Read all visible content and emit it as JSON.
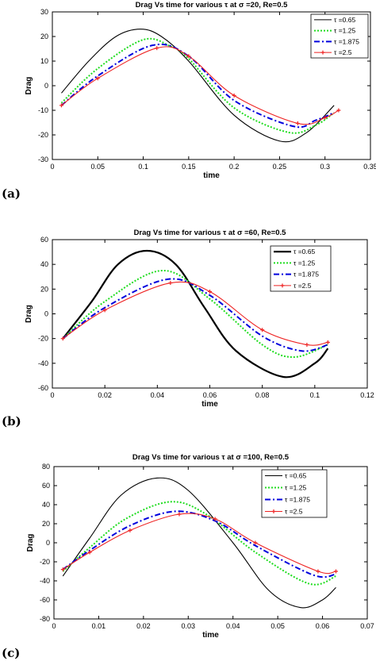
{
  "chart_data": [
    {
      "type": "line",
      "panel_label": "(a)",
      "title": "Drag Vs time for various  τ at  σ =20, Re=0.5",
      "xlabel": "time",
      "ylabel": "Drag",
      "xlim": [
        0,
        0.35
      ],
      "ylim": [
        -30,
        30
      ],
      "x_ticks": [
        "0",
        "0.05",
        "0.1",
        "0.15",
        "0.2",
        "0.25",
        "0.3",
        "0.35"
      ],
      "y_ticks": [
        "-30",
        "-20",
        "-10",
        "0",
        "10",
        "20",
        "30"
      ],
      "grid": false,
      "legend_position": "top-right",
      "series": [
        {
          "name": "τ =0.65",
          "color": "#000000",
          "style": "solid",
          "marker": "none",
          "x": [
            0.01,
            0.04,
            0.07,
            0.097,
            0.12,
            0.15,
            0.2,
            0.25,
            0.28,
            0.31
          ],
          "y": [
            -3,
            10,
            20,
            23,
            20,
            10,
            -12,
            -22.5,
            -19,
            -8
          ]
        },
        {
          "name": "τ =1.25",
          "color": "#22dd22",
          "style": "dotted",
          "marker": "none",
          "x": [
            0.01,
            0.05,
            0.1,
            0.13,
            0.15,
            0.2,
            0.26,
            0.29,
            0.31
          ],
          "y": [
            -7,
            7,
            18.7,
            16,
            11,
            -9,
            -19,
            -16,
            -11
          ]
        },
        {
          "name": "τ =1.875",
          "color": "#0000dd",
          "style": "dashdot",
          "marker": "none",
          "x": [
            0.01,
            0.05,
            0.11,
            0.15,
            0.2,
            0.265,
            0.29,
            0.31
          ],
          "y": [
            -8,
            4,
            16.4,
            12,
            -6,
            -16.5,
            -14,
            -11
          ]
        },
        {
          "name": "τ =2.5",
          "color": "#ee2222",
          "style": "solid",
          "marker": "plus",
          "x": [
            0.01,
            0.05,
            0.115,
            0.15,
            0.2,
            0.27,
            0.3,
            0.315
          ],
          "y": [
            -8,
            3,
            15.3,
            12,
            -4,
            -15.3,
            -13,
            -10
          ]
        }
      ]
    },
    {
      "type": "line",
      "panel_label": "(b)",
      "title": "Drag Vs time for various  τ at  σ =60, Re=0.5",
      "xlabel": "time",
      "ylabel": "Drag",
      "xlim": [
        0,
        0.12
      ],
      "ylim": [
        -60,
        60
      ],
      "x_ticks": [
        "0",
        "0.02",
        "0.04",
        "0.06",
        "0.08",
        "0.1",
        "0.12"
      ],
      "y_ticks": [
        "-60",
        "-40",
        "-20",
        "0",
        "20",
        "40",
        "60"
      ],
      "grid": false,
      "legend_position": "top-right",
      "series": [
        {
          "name": "τ =0.65",
          "color": "#000000",
          "style": "solid-thick",
          "marker": "none",
          "x": [
            0.004,
            0.015,
            0.025,
            0.036,
            0.047,
            0.058,
            0.07,
            0.088,
            0.1,
            0.105
          ],
          "y": [
            -20,
            10,
            40,
            51,
            40,
            5,
            -30,
            -51,
            -40,
            -28
          ]
        },
        {
          "name": "τ =1.25",
          "color": "#22dd22",
          "style": "dotted",
          "marker": "none",
          "x": [
            0.004,
            0.02,
            0.042,
            0.06,
            0.08,
            0.092,
            0.105
          ],
          "y": [
            -20,
            10,
            35,
            12,
            -25,
            -35,
            -25
          ]
        },
        {
          "name": "τ =1.875",
          "color": "#0000dd",
          "style": "dashdot",
          "marker": "none",
          "x": [
            0.004,
            0.02,
            0.044,
            0.06,
            0.08,
            0.095,
            0.105
          ],
          "y": [
            -20,
            5,
            28,
            15,
            -18,
            -30,
            -25
          ]
        },
        {
          "name": "τ =2.5",
          "color": "#ee2222",
          "style": "solid",
          "marker": "plus",
          "x": [
            0.004,
            0.02,
            0.045,
            0.06,
            0.08,
            0.097,
            0.105
          ],
          "y": [
            -20,
            3,
            25,
            18,
            -13,
            -25,
            -23
          ]
        }
      ]
    },
    {
      "type": "line",
      "panel_label": "(c)",
      "title": "Drag Vs time for various  τ at  σ =100, Re=0.5",
      "xlabel": "time",
      "ylabel": "Drag",
      "xlim": [
        0,
        0.07
      ],
      "ylim": [
        -80,
        80
      ],
      "x_ticks": [
        "0",
        "0.01",
        "0.02",
        "0.03",
        "0.04",
        "0.05",
        "0.06",
        "0.07"
      ],
      "y_ticks": [
        "-80",
        "-60",
        "-40",
        "-20",
        "0",
        "20",
        "40",
        "60",
        "80"
      ],
      "grid": false,
      "legend_position": "top-right",
      "series": [
        {
          "name": "τ =0.65",
          "color": "#000000",
          "style": "solid",
          "marker": "none",
          "x": [
            0.002,
            0.008,
            0.015,
            0.023,
            0.03,
            0.04,
            0.048,
            0.055,
            0.06,
            0.063
          ],
          "y": [
            -35,
            5,
            50,
            68,
            55,
            0,
            -50,
            -68,
            -60,
            -47
          ]
        },
        {
          "name": "τ =1.25",
          "color": "#22dd22",
          "style": "dotted",
          "marker": "none",
          "x": [
            0.002,
            0.008,
            0.016,
            0.026,
            0.034,
            0.045,
            0.057,
            0.063
          ],
          "y": [
            -30,
            -5,
            25,
            43,
            30,
            -10,
            -43,
            -35
          ]
        },
        {
          "name": "τ =1.875",
          "color": "#0000dd",
          "style": "dashdot",
          "marker": "none",
          "x": [
            0.002,
            0.008,
            0.017,
            0.027,
            0.036,
            0.045,
            0.058,
            0.063
          ],
          "y": [
            -28,
            -8,
            18,
            33,
            23,
            -3,
            -34,
            -33
          ]
        },
        {
          "name": "τ =2.5",
          "color": "#ee2222",
          "style": "solid",
          "marker": "plus",
          "x": [
            0.002,
            0.008,
            0.017,
            0.028,
            0.036,
            0.045,
            0.059,
            0.063
          ],
          "y": [
            -28,
            -10,
            13,
            30,
            25,
            0,
            -30,
            -30
          ]
        }
      ]
    }
  ]
}
